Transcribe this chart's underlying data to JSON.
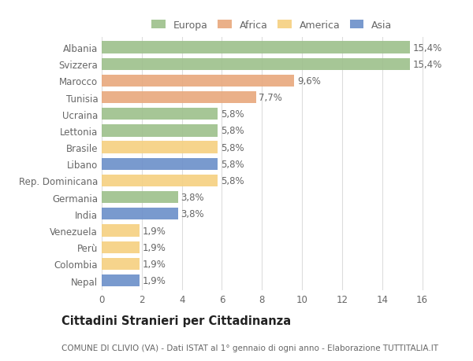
{
  "categories": [
    "Albania",
    "Svizzera",
    "Marocco",
    "Tunisia",
    "Ucraina",
    "Lettonia",
    "Brasile",
    "Libano",
    "Rep. Dominicana",
    "Germania",
    "India",
    "Venezuela",
    "Perù",
    "Colombia",
    "Nepal"
  ],
  "values": [
    15.4,
    15.4,
    9.6,
    7.7,
    5.8,
    5.8,
    5.8,
    5.8,
    5.8,
    3.8,
    3.8,
    1.9,
    1.9,
    1.9,
    1.9
  ],
  "continents": [
    "Europa",
    "Europa",
    "Africa",
    "Africa",
    "Europa",
    "Europa",
    "America",
    "Asia",
    "America",
    "Europa",
    "Asia",
    "America",
    "America",
    "America",
    "Asia"
  ],
  "labels": [
    "15,4%",
    "15,4%",
    "9,6%",
    "7,7%",
    "5,8%",
    "5,8%",
    "5,8%",
    "5,8%",
    "5,8%",
    "3,8%",
    "3,8%",
    "1,9%",
    "1,9%",
    "1,9%",
    "1,9%"
  ],
  "colors": {
    "Europa": "#9dc08b",
    "Africa": "#e8a87c",
    "America": "#f5d080",
    "Asia": "#6b8fc9"
  },
  "xlim": [
    0,
    17
  ],
  "xticks": [
    0,
    2,
    4,
    6,
    8,
    10,
    12,
    14,
    16
  ],
  "title": "Cittadini Stranieri per Cittadinanza",
  "subtitle": "COMUNE DI CLIVIO (VA) - Dati ISTAT al 1° gennaio di ogni anno - Elaborazione TUTTITALIA.IT",
  "background_color": "#ffffff",
  "bar_height": 0.72,
  "label_fontsize": 8.5,
  "tick_fontsize": 8.5,
  "title_fontsize": 10.5,
  "subtitle_fontsize": 7.5
}
